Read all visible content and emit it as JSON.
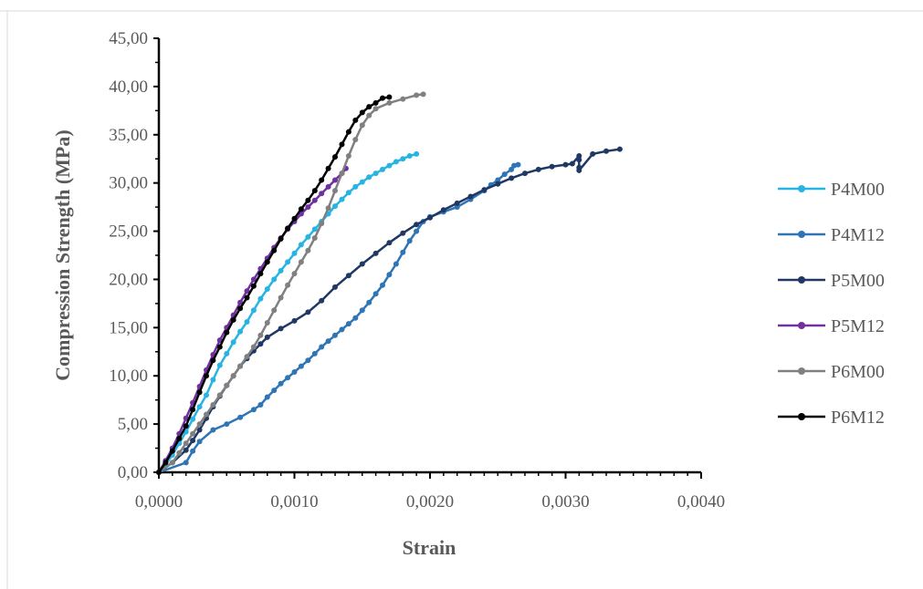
{
  "chart_data": {
    "type": "line",
    "title": "",
    "xlabel": "Strain",
    "ylabel": "Compression Strength (MPa)",
    "xlim": [
      0,
      0.004
    ],
    "ylim": [
      0,
      45
    ],
    "x_ticks": [
      0,
      0.001,
      0.002,
      0.003,
      0.004
    ],
    "x_tick_labels": [
      "0,0000",
      "0,0010",
      "0,0020",
      "0,0030",
      "0,0040"
    ],
    "y_ticks": [
      0,
      5,
      10,
      15,
      20,
      25,
      30,
      35,
      40,
      45
    ],
    "y_tick_labels": [
      "0,00",
      "5,00",
      "10,00",
      "15,00",
      "20,00",
      "25,00",
      "30,00",
      "35,00",
      "40,00",
      "45,00"
    ],
    "grid": false,
    "legend_position": "right",
    "series": [
      {
        "name": "P4M00",
        "color": "#27b4e3",
        "points": [
          [
            0,
            0
          ],
          [
            5e-05,
            0.8
          ],
          [
            0.0001,
            1.8
          ],
          [
            0.00015,
            3.0
          ],
          [
            0.0002,
            4.2
          ],
          [
            0.00025,
            5.5
          ],
          [
            0.0003,
            6.8
          ],
          [
            0.00035,
            8.0
          ],
          [
            0.0004,
            9.6
          ],
          [
            0.00045,
            11.1
          ],
          [
            0.0005,
            12.3
          ],
          [
            0.00055,
            13.5
          ],
          [
            0.0006,
            14.6
          ],
          [
            0.00065,
            15.6
          ],
          [
            0.0007,
            16.8
          ],
          [
            0.00075,
            18.0
          ],
          [
            0.0008,
            19.0
          ],
          [
            0.00085,
            20.0
          ],
          [
            0.0009,
            20.9
          ],
          [
            0.00095,
            21.8
          ],
          [
            0.001,
            22.7
          ],
          [
            0.00105,
            23.6
          ],
          [
            0.0011,
            24.4
          ],
          [
            0.00115,
            25.2
          ],
          [
            0.0012,
            26.0
          ],
          [
            0.00125,
            26.8
          ],
          [
            0.0013,
            27.6
          ],
          [
            0.00135,
            28.3
          ],
          [
            0.0014,
            29.0
          ],
          [
            0.00145,
            29.6
          ],
          [
            0.0015,
            30.1
          ],
          [
            0.00155,
            30.6
          ],
          [
            0.0016,
            31.0
          ],
          [
            0.00165,
            31.4
          ],
          [
            0.0017,
            31.8
          ],
          [
            0.00175,
            32.2
          ],
          [
            0.0018,
            32.5
          ],
          [
            0.00185,
            32.8
          ],
          [
            0.0019,
            33.0
          ]
        ]
      },
      {
        "name": "P4M12",
        "color": "#2e75b6",
        "points": [
          [
            0,
            0
          ],
          [
            0.0002,
            1.0
          ],
          [
            0.00025,
            2.2
          ],
          [
            0.0003,
            3.2
          ],
          [
            0.0004,
            4.4
          ],
          [
            0.0005,
            5.0
          ],
          [
            0.0006,
            5.7
          ],
          [
            0.0007,
            6.5
          ],
          [
            0.00075,
            7.0
          ],
          [
            0.0008,
            7.8
          ],
          [
            0.00085,
            8.5
          ],
          [
            0.0009,
            9.2
          ],
          [
            0.00095,
            9.8
          ],
          [
            0.001,
            10.4
          ],
          [
            0.00105,
            11.0
          ],
          [
            0.0011,
            11.6
          ],
          [
            0.00115,
            12.3
          ],
          [
            0.0012,
            13.0
          ],
          [
            0.00125,
            13.6
          ],
          [
            0.0013,
            14.2
          ],
          [
            0.00135,
            14.8
          ],
          [
            0.0014,
            15.4
          ],
          [
            0.00145,
            16.0
          ],
          [
            0.0015,
            16.8
          ],
          [
            0.00155,
            17.6
          ],
          [
            0.0016,
            18.5
          ],
          [
            0.00165,
            19.4
          ],
          [
            0.0017,
            20.5
          ],
          [
            0.00175,
            21.6
          ],
          [
            0.0018,
            22.8
          ],
          [
            0.00185,
            24.0
          ],
          [
            0.0019,
            25.0
          ],
          [
            0.00195,
            26.0
          ],
          [
            0.002,
            26.5
          ],
          [
            0.0021,
            27.0
          ],
          [
            0.0022,
            27.5
          ],
          [
            0.0023,
            28.3
          ],
          [
            0.0024,
            29.2
          ],
          [
            0.00245,
            29.8
          ],
          [
            0.0025,
            30.3
          ],
          [
            0.00255,
            30.9
          ],
          [
            0.0026,
            31.4
          ],
          [
            0.00262,
            31.8
          ],
          [
            0.00265,
            31.9
          ]
        ]
      },
      {
        "name": "P5M00",
        "color": "#203864",
        "points": [
          [
            0,
            0
          ],
          [
            0.0001,
            1.0
          ],
          [
            0.0002,
            2.3
          ],
          [
            0.00025,
            3.3
          ],
          [
            0.0003,
            4.4
          ],
          [
            0.00035,
            5.6
          ],
          [
            0.0004,
            6.8
          ],
          [
            0.00045,
            7.9
          ],
          [
            0.0005,
            9.0
          ],
          [
            0.00055,
            10.0
          ],
          [
            0.0006,
            11.0
          ],
          [
            0.00065,
            11.8
          ],
          [
            0.0007,
            12.6
          ],
          [
            0.00075,
            13.3
          ],
          [
            0.0008,
            14.0
          ],
          [
            0.0009,
            14.9
          ],
          [
            0.001,
            15.7
          ],
          [
            0.0011,
            16.6
          ],
          [
            0.0012,
            17.8
          ],
          [
            0.0013,
            19.2
          ],
          [
            0.0014,
            20.4
          ],
          [
            0.0015,
            21.6
          ],
          [
            0.0016,
            22.7
          ],
          [
            0.0017,
            23.8
          ],
          [
            0.0018,
            24.8
          ],
          [
            0.0019,
            25.7
          ],
          [
            0.002,
            26.4
          ],
          [
            0.0021,
            27.2
          ],
          [
            0.0022,
            27.9
          ],
          [
            0.0023,
            28.6
          ],
          [
            0.0024,
            29.3
          ],
          [
            0.0025,
            29.9
          ],
          [
            0.0026,
            30.5
          ],
          [
            0.0027,
            31.0
          ],
          [
            0.0028,
            31.4
          ],
          [
            0.0029,
            31.7
          ],
          [
            0.003,
            31.9
          ],
          [
            0.00305,
            32.0
          ],
          [
            0.0031,
            32.8
          ],
          [
            0.0031,
            31.6
          ],
          [
            0.0031,
            32.4
          ],
          [
            0.0031,
            31.3
          ],
          [
            0.0032,
            33.0
          ],
          [
            0.0033,
            33.3
          ],
          [
            0.0034,
            33.5
          ]
        ]
      },
      {
        "name": "P5M12",
        "color": "#7030a0",
        "points": [
          [
            0,
            0
          ],
          [
            5e-05,
            1.2
          ],
          [
            0.0001,
            2.5
          ],
          [
            0.00015,
            4.0
          ],
          [
            0.0002,
            5.6
          ],
          [
            0.00025,
            7.2
          ],
          [
            0.0003,
            8.9
          ],
          [
            0.00035,
            10.6
          ],
          [
            0.0004,
            12.2
          ],
          [
            0.00045,
            13.7
          ],
          [
            0.0005,
            15.0
          ],
          [
            0.00055,
            16.3
          ],
          [
            0.0006,
            17.6
          ],
          [
            0.00065,
            18.8
          ],
          [
            0.0007,
            20.0
          ],
          [
            0.00075,
            21.1
          ],
          [
            0.0008,
            22.2
          ],
          [
            0.00085,
            23.3
          ],
          [
            0.0009,
            24.3
          ],
          [
            0.00095,
            25.2
          ],
          [
            0.001,
            26.0
          ],
          [
            0.00105,
            26.8
          ],
          [
            0.0011,
            27.5
          ],
          [
            0.00115,
            28.2
          ],
          [
            0.0012,
            28.9
          ],
          [
            0.00125,
            29.6
          ],
          [
            0.0013,
            30.3
          ],
          [
            0.00135,
            31.0
          ],
          [
            0.00138,
            31.5
          ]
        ]
      },
      {
        "name": "P6M00",
        "color": "#808080",
        "points": [
          [
            0,
            0
          ],
          [
            0.0001,
            1.0
          ],
          [
            0.00015,
            2.0
          ],
          [
            0.0002,
            3.0
          ],
          [
            0.00025,
            4.0
          ],
          [
            0.0003,
            5.0
          ],
          [
            0.00035,
            6.0
          ],
          [
            0.0004,
            7.0
          ],
          [
            0.00045,
            8.0
          ],
          [
            0.0005,
            9.0
          ],
          [
            0.00055,
            10.0
          ],
          [
            0.0006,
            11.0
          ],
          [
            0.00065,
            12.0
          ],
          [
            0.0007,
            13.0
          ],
          [
            0.00075,
            14.2
          ],
          [
            0.0008,
            15.5
          ],
          [
            0.00085,
            16.8
          ],
          [
            0.0009,
            18.1
          ],
          [
            0.00095,
            19.4
          ],
          [
            0.001,
            20.6
          ],
          [
            0.00105,
            21.8
          ],
          [
            0.0011,
            23.0
          ],
          [
            0.00115,
            24.3
          ],
          [
            0.0012,
            25.8
          ],
          [
            0.00125,
            27.4
          ],
          [
            0.0013,
            29.2
          ],
          [
            0.00135,
            31.0
          ],
          [
            0.0014,
            32.8
          ],
          [
            0.00145,
            34.5
          ],
          [
            0.0015,
            36.0
          ],
          [
            0.00155,
            37.0
          ],
          [
            0.0016,
            37.7
          ],
          [
            0.0017,
            38.3
          ],
          [
            0.0018,
            38.7
          ],
          [
            0.0019,
            39.1
          ],
          [
            0.00195,
            39.2
          ]
        ]
      },
      {
        "name": "P6M12",
        "color": "#000000",
        "points": [
          [
            0,
            0
          ],
          [
            5e-05,
            1.0
          ],
          [
            0.0001,
            2.2
          ],
          [
            0.00015,
            3.5
          ],
          [
            0.0002,
            4.8
          ],
          [
            0.00025,
            6.5
          ],
          [
            0.0003,
            8.3
          ],
          [
            0.00035,
            10.0
          ],
          [
            0.0004,
            11.6
          ],
          [
            0.00045,
            13.0
          ],
          [
            0.0005,
            14.5
          ],
          [
            0.00055,
            15.8
          ],
          [
            0.0006,
            17.0
          ],
          [
            0.00065,
            18.1
          ],
          [
            0.0007,
            19.3
          ],
          [
            0.00075,
            20.6
          ],
          [
            0.0008,
            21.8
          ],
          [
            0.00085,
            23.0
          ],
          [
            0.0009,
            24.2
          ],
          [
            0.00095,
            25.3
          ],
          [
            0.001,
            26.3
          ],
          [
            0.00105,
            27.3
          ],
          [
            0.0011,
            28.2
          ],
          [
            0.00115,
            29.2
          ],
          [
            0.0012,
            30.3
          ],
          [
            0.00125,
            31.5
          ],
          [
            0.0013,
            32.7
          ],
          [
            0.00135,
            34.0
          ],
          [
            0.0014,
            35.3
          ],
          [
            0.00145,
            36.5
          ],
          [
            0.0015,
            37.3
          ],
          [
            0.00155,
            37.9
          ],
          [
            0.0016,
            38.3
          ],
          [
            0.00165,
            38.8
          ],
          [
            0.0017,
            38.9
          ]
        ]
      }
    ]
  }
}
